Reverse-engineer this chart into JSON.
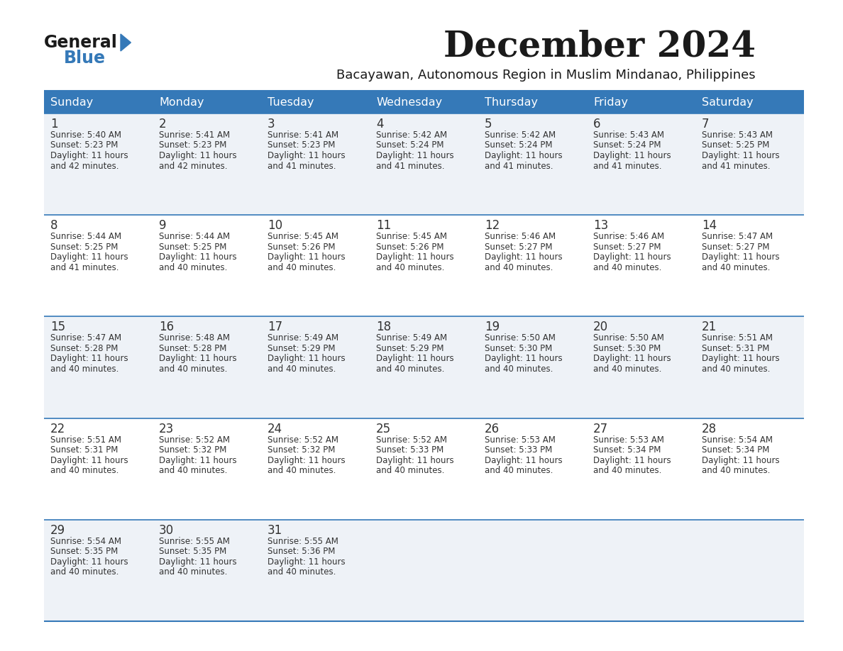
{
  "title": "December 2024",
  "subtitle": "Bacayawan, Autonomous Region in Muslim Mindanao, Philippines",
  "header_bg_color": "#3579b8",
  "header_text_color": "#ffffff",
  "row_bg_odd": "#eef2f7",
  "row_bg_even": "#ffffff",
  "cell_text_color": "#333333",
  "day_number_color": "#333333",
  "border_color": "#3579b8",
  "days_of_week": [
    "Sunday",
    "Monday",
    "Tuesday",
    "Wednesday",
    "Thursday",
    "Friday",
    "Saturday"
  ],
  "calendar": [
    [
      {
        "day": 1,
        "sunrise": "5:40 AM",
        "sunset": "5:23 PM",
        "daylight_hours": 11,
        "daylight_minutes": 42
      },
      {
        "day": 2,
        "sunrise": "5:41 AM",
        "sunset": "5:23 PM",
        "daylight_hours": 11,
        "daylight_minutes": 42
      },
      {
        "day": 3,
        "sunrise": "5:41 AM",
        "sunset": "5:23 PM",
        "daylight_hours": 11,
        "daylight_minutes": 41
      },
      {
        "day": 4,
        "sunrise": "5:42 AM",
        "sunset": "5:24 PM",
        "daylight_hours": 11,
        "daylight_minutes": 41
      },
      {
        "day": 5,
        "sunrise": "5:42 AM",
        "sunset": "5:24 PM",
        "daylight_hours": 11,
        "daylight_minutes": 41
      },
      {
        "day": 6,
        "sunrise": "5:43 AM",
        "sunset": "5:24 PM",
        "daylight_hours": 11,
        "daylight_minutes": 41
      },
      {
        "day": 7,
        "sunrise": "5:43 AM",
        "sunset": "5:25 PM",
        "daylight_hours": 11,
        "daylight_minutes": 41
      }
    ],
    [
      {
        "day": 8,
        "sunrise": "5:44 AM",
        "sunset": "5:25 PM",
        "daylight_hours": 11,
        "daylight_minutes": 41
      },
      {
        "day": 9,
        "sunrise": "5:44 AM",
        "sunset": "5:25 PM",
        "daylight_hours": 11,
        "daylight_minutes": 40
      },
      {
        "day": 10,
        "sunrise": "5:45 AM",
        "sunset": "5:26 PM",
        "daylight_hours": 11,
        "daylight_minutes": 40
      },
      {
        "day": 11,
        "sunrise": "5:45 AM",
        "sunset": "5:26 PM",
        "daylight_hours": 11,
        "daylight_minutes": 40
      },
      {
        "day": 12,
        "sunrise": "5:46 AM",
        "sunset": "5:27 PM",
        "daylight_hours": 11,
        "daylight_minutes": 40
      },
      {
        "day": 13,
        "sunrise": "5:46 AM",
        "sunset": "5:27 PM",
        "daylight_hours": 11,
        "daylight_minutes": 40
      },
      {
        "day": 14,
        "sunrise": "5:47 AM",
        "sunset": "5:27 PM",
        "daylight_hours": 11,
        "daylight_minutes": 40
      }
    ],
    [
      {
        "day": 15,
        "sunrise": "5:47 AM",
        "sunset": "5:28 PM",
        "daylight_hours": 11,
        "daylight_minutes": 40
      },
      {
        "day": 16,
        "sunrise": "5:48 AM",
        "sunset": "5:28 PM",
        "daylight_hours": 11,
        "daylight_minutes": 40
      },
      {
        "day": 17,
        "sunrise": "5:49 AM",
        "sunset": "5:29 PM",
        "daylight_hours": 11,
        "daylight_minutes": 40
      },
      {
        "day": 18,
        "sunrise": "5:49 AM",
        "sunset": "5:29 PM",
        "daylight_hours": 11,
        "daylight_minutes": 40
      },
      {
        "day": 19,
        "sunrise": "5:50 AM",
        "sunset": "5:30 PM",
        "daylight_hours": 11,
        "daylight_minutes": 40
      },
      {
        "day": 20,
        "sunrise": "5:50 AM",
        "sunset": "5:30 PM",
        "daylight_hours": 11,
        "daylight_minutes": 40
      },
      {
        "day": 21,
        "sunrise": "5:51 AM",
        "sunset": "5:31 PM",
        "daylight_hours": 11,
        "daylight_minutes": 40
      }
    ],
    [
      {
        "day": 22,
        "sunrise": "5:51 AM",
        "sunset": "5:31 PM",
        "daylight_hours": 11,
        "daylight_minutes": 40
      },
      {
        "day": 23,
        "sunrise": "5:52 AM",
        "sunset": "5:32 PM",
        "daylight_hours": 11,
        "daylight_minutes": 40
      },
      {
        "day": 24,
        "sunrise": "5:52 AM",
        "sunset": "5:32 PM",
        "daylight_hours": 11,
        "daylight_minutes": 40
      },
      {
        "day": 25,
        "sunrise": "5:52 AM",
        "sunset": "5:33 PM",
        "daylight_hours": 11,
        "daylight_minutes": 40
      },
      {
        "day": 26,
        "sunrise": "5:53 AM",
        "sunset": "5:33 PM",
        "daylight_hours": 11,
        "daylight_minutes": 40
      },
      {
        "day": 27,
        "sunrise": "5:53 AM",
        "sunset": "5:34 PM",
        "daylight_hours": 11,
        "daylight_minutes": 40
      },
      {
        "day": 28,
        "sunrise": "5:54 AM",
        "sunset": "5:34 PM",
        "daylight_hours": 11,
        "daylight_minutes": 40
      }
    ],
    [
      {
        "day": 29,
        "sunrise": "5:54 AM",
        "sunset": "5:35 PM",
        "daylight_hours": 11,
        "daylight_minutes": 40
      },
      {
        "day": 30,
        "sunrise": "5:55 AM",
        "sunset": "5:35 PM",
        "daylight_hours": 11,
        "daylight_minutes": 40
      },
      {
        "day": 31,
        "sunrise": "5:55 AM",
        "sunset": "5:36 PM",
        "daylight_hours": 11,
        "daylight_minutes": 40
      },
      null,
      null,
      null,
      null
    ]
  ],
  "fig_width": 11.88,
  "fig_height": 9.18,
  "bg_color": "#ffffff",
  "title_fontsize": 36,
  "subtitle_fontsize": 13,
  "header_fontsize": 11.5,
  "day_num_fontsize": 12,
  "cell_fontsize": 8.5,
  "logo_general_fontsize": 17,
  "logo_blue_fontsize": 17
}
